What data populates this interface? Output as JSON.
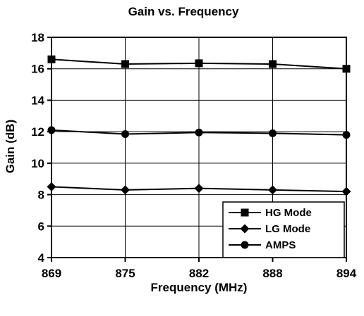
{
  "chart_data": {
    "type": "line",
    "title": "Gain vs. Frequency",
    "xlabel": "Frequency (MHz)",
    "ylabel": "Gain (dB)",
    "categories": [
      "869",
      "875",
      "882",
      "888",
      "894"
    ],
    "ylim": [
      4,
      18
    ],
    "yticks": [
      "4",
      "6",
      "8",
      "10",
      "12",
      "14",
      "16",
      "18"
    ],
    "grid": true,
    "legend_position": "bottom-right",
    "series": [
      {
        "name": "HG Mode",
        "marker": "square",
        "color": "#000000",
        "values": [
          16.6,
          16.3,
          16.35,
          16.3,
          16.0
        ]
      },
      {
        "name": "LG Mode",
        "marker": "diamond",
        "color": "#000000",
        "values": [
          8.5,
          8.3,
          8.4,
          8.3,
          8.2
        ]
      },
      {
        "name": "AMPS",
        "marker": "circle",
        "color": "#000000",
        "values": [
          12.1,
          11.85,
          11.95,
          11.9,
          11.8
        ]
      }
    ]
  }
}
